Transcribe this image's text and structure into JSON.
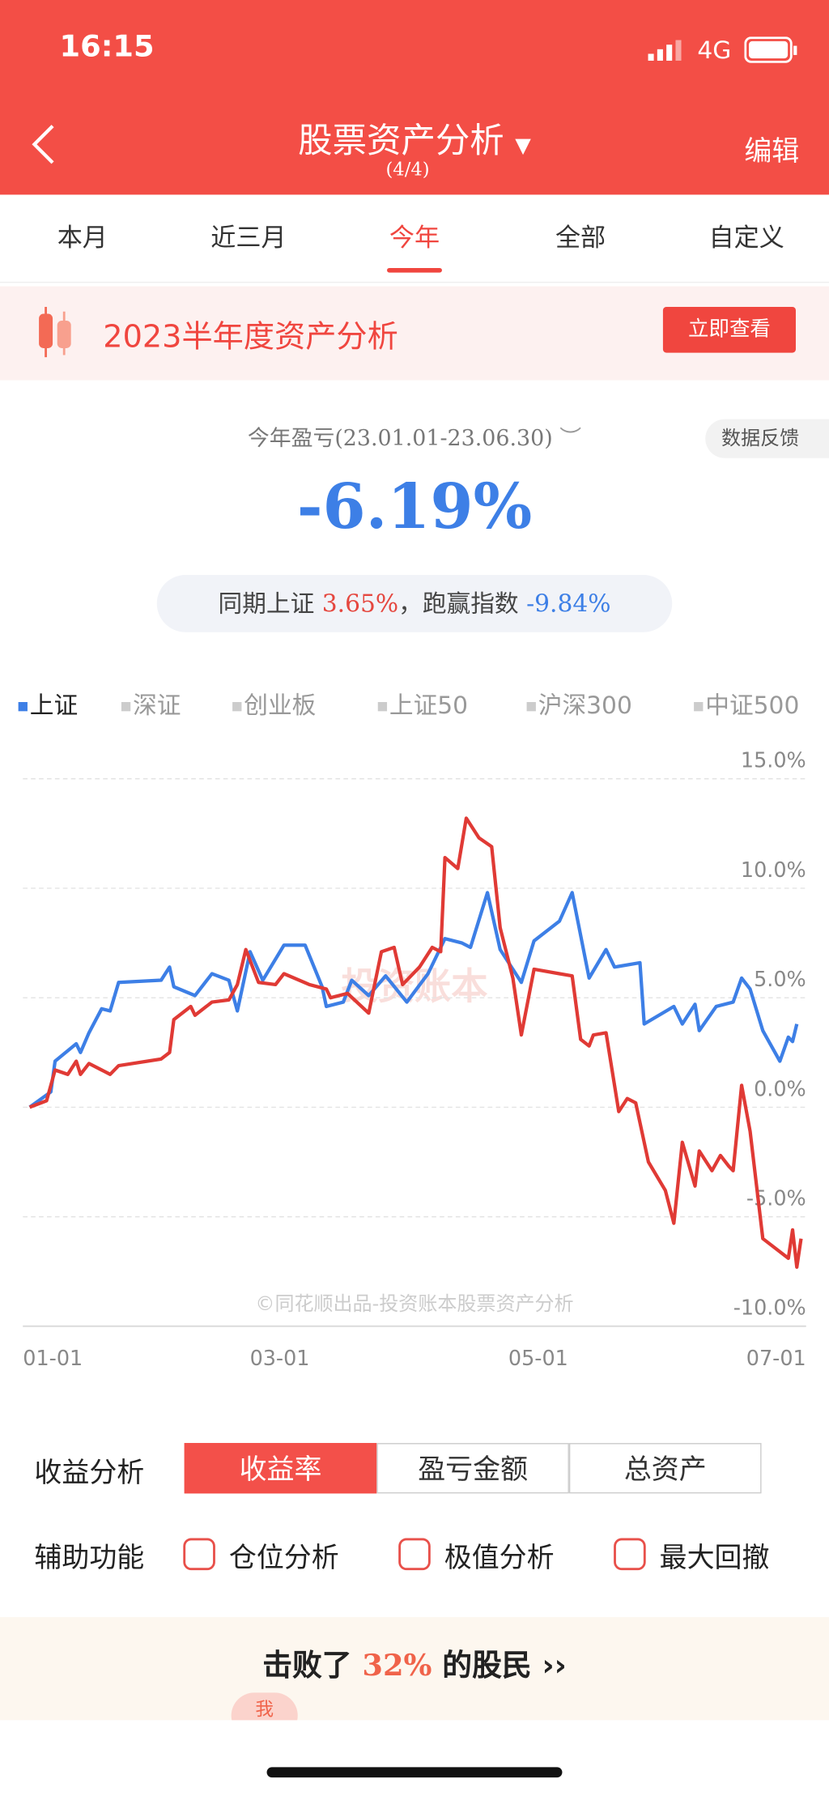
{
  "status_bar": {
    "time": "16:15",
    "network": "4G"
  },
  "header": {
    "title": "股票资产分析",
    "subtitle": "(4/4)",
    "action": "编辑"
  },
  "tabs": {
    "items": [
      "本月",
      "近三月",
      "今年",
      "全部",
      "自定义"
    ],
    "active": 2
  },
  "banner": {
    "title": "2023半年度资产分析",
    "button": "立即查看"
  },
  "summary": {
    "period": "今年盈亏(23.01.01-23.06.30)",
    "feedback": "数据反馈",
    "return": "-6.19%",
    "benchmark_label": "同期上证",
    "benchmark_return": "3.65%",
    "excess_label": "，跑赢指数",
    "excess_return": "-9.84%"
  },
  "chart_data": {
    "type": "line",
    "index_options": [
      "上证",
      "深证",
      "创业板",
      "上证50",
      "沪深300",
      "中证500"
    ],
    "active_index": 0,
    "active_color": "#3d7fe6",
    "watermark": "投资账本",
    "footer_note": "©同花顺出品-投资账本股票资产分析",
    "xlim": [
      -1.6,
      183.2
    ],
    "xticks": [
      {
        "value": 0,
        "label": "01-01"
      },
      {
        "value": 59,
        "label": "03-01"
      },
      {
        "value": 120,
        "label": "05-01"
      },
      {
        "value": 181,
        "label": "07-01"
      }
    ],
    "ylim": [
      -10,
      15
    ],
    "yticks": [
      {
        "value": 15,
        "label": "15.0%"
      },
      {
        "value": 10,
        "label": "10.0%"
      },
      {
        "value": 5,
        "label": "5.0%"
      },
      {
        "value": 0,
        "label": "0.0%"
      },
      {
        "value": -5,
        "label": "-5.0%"
      },
      {
        "value": -10,
        "label": "-10.0%"
      }
    ],
    "grid": true,
    "series": [
      {
        "color": "#3d7fe6",
        "x": [
          0,
          5,
          6,
          11,
          12,
          14,
          17,
          19,
          21,
          31,
          33,
          34,
          39,
          43,
          47,
          49,
          52,
          55,
          60,
          65,
          69,
          70,
          74,
          76,
          80,
          84,
          89,
          94,
          98,
          102,
          104,
          108,
          111,
          116,
          119,
          125,
          128,
          132,
          136,
          138,
          144,
          145,
          152,
          154,
          157,
          158,
          162,
          166,
          168,
          170,
          173,
          177,
          179,
          180,
          181
        ],
        "values": [
          0,
          0.7,
          2.1,
          2.9,
          2.5,
          3.4,
          4.5,
          4.4,
          5.7,
          5.8,
          6.4,
          5.5,
          5.1,
          6.1,
          5.8,
          4.4,
          7.1,
          5.8,
          7.4,
          7.4,
          5.5,
          4.6,
          4.8,
          5.8,
          5.1,
          6.0,
          4.8,
          6.1,
          7.7,
          7.5,
          7.3,
          9.8,
          7.2,
          5.7,
          7.6,
          8.5,
          9.8,
          5.9,
          7.2,
          6.4,
          6.6,
          3.8,
          4.6,
          3.8,
          4.7,
          3.5,
          4.6,
          4.8,
          5.9,
          5.4,
          3.5,
          2.1,
          3.2,
          3.0,
          3.8
        ]
      },
      {
        "color": "#e03a35",
        "x": [
          0,
          4,
          6,
          9,
          11,
          12,
          14,
          17,
          19,
          21,
          31,
          33,
          34,
          38,
          39,
          43,
          47,
          49,
          51,
          54,
          58,
          60,
          66,
          70,
          71,
          75,
          80,
          83,
          86,
          88,
          92,
          95,
          97,
          98,
          101,
          103,
          106,
          109,
          111,
          114,
          116,
          119,
          125,
          128,
          130,
          132,
          133,
          136,
          139,
          141,
          143,
          146,
          150,
          152,
          154,
          157,
          158,
          161,
          163,
          165,
          166,
          168,
          170,
          173,
          179,
          180,
          181,
          182
        ],
        "values": [
          0,
          0.3,
          1.7,
          1.5,
          2.1,
          1.5,
          2.0,
          1.7,
          1.5,
          1.9,
          2.2,
          2.5,
          4.0,
          4.6,
          4.2,
          4.8,
          4.9,
          5.6,
          7.2,
          5.7,
          5.6,
          6.1,
          5.6,
          5.4,
          5.0,
          5.2,
          4.3,
          7.1,
          7.3,
          5.6,
          6.4,
          7.3,
          7.1,
          11.4,
          10.9,
          13.2,
          12.3,
          11.9,
          8.2,
          5.9,
          3.3,
          6.3,
          6.1,
          6.0,
          3.1,
          2.8,
          3.3,
          3.4,
          -0.2,
          0.4,
          0.2,
          -2.5,
          -3.8,
          -5.3,
          -1.6,
          -3.6,
          -2.0,
          -2.9,
          -2.2,
          -2.7,
          -2.9,
          1.0,
          -1.1,
          -6.0,
          -6.9,
          -5.6,
          -7.3,
          -6.0
        ]
      }
    ]
  },
  "analysis": {
    "label": "收益分析",
    "options": [
      "收益率",
      "盈亏金额",
      "总资产"
    ],
    "active": 0
  },
  "tools": {
    "label": "辅助功能",
    "options": [
      "仓位分析",
      "极值分析",
      "最大回撤"
    ]
  },
  "ranking": {
    "prefix": "击败了",
    "percent": "32%",
    "suffix": "的股民",
    "me": "我"
  }
}
